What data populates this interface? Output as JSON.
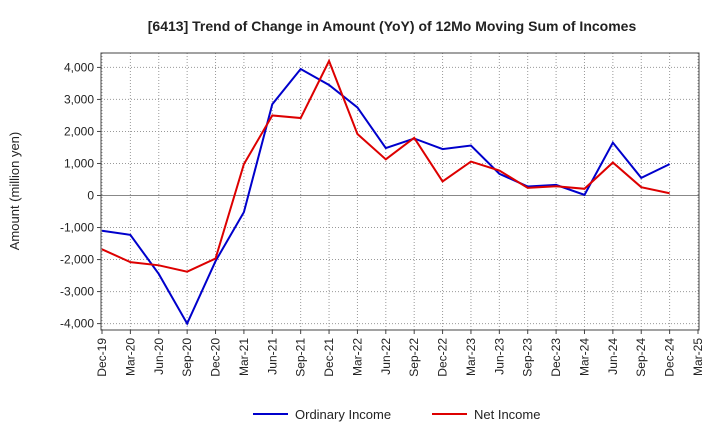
{
  "chart_data": {
    "type": "line",
    "title": "[6413]  Trend of Change in Amount (YoY) of 12Mo Moving Sum of Incomes",
    "xlabel": "",
    "ylabel": "Amount (million yen)",
    "categories": [
      "Dec-19",
      "Mar-20",
      "Jun-20",
      "Sep-20",
      "Dec-20",
      "Mar-21",
      "Jun-21",
      "Sep-21",
      "Dec-21",
      "Mar-22",
      "Jun-22",
      "Sep-22",
      "Dec-22",
      "Mar-23",
      "Jun-23",
      "Sep-23",
      "Dec-23",
      "Mar-24",
      "Jun-24",
      "Sep-24",
      "Dec-24",
      "Mar-25"
    ],
    "ylim": [
      -4200,
      4450
    ],
    "yticks": [
      -4000,
      -3000,
      -2000,
      -1000,
      0,
      1000,
      2000,
      3000,
      4000
    ],
    "ytick_labels": [
      "-4,000",
      "-3,000",
      "-2,000",
      "-1,000",
      "0",
      "1,000",
      "2,000",
      "3,000",
      "4,000"
    ],
    "grid": true,
    "legend_position": "bottom-center",
    "series": [
      {
        "name": "Ordinary Income",
        "color": "#0000cc",
        "values": [
          -1100,
          -1230,
          -2450,
          -4000,
          -2050,
          -520,
          2850,
          3950,
          3450,
          2750,
          1480,
          1780,
          1450,
          1560,
          680,
          280,
          330,
          20,
          1650,
          550,
          980,
          null
        ]
      },
      {
        "name": "Net Income",
        "color": "#dd0000",
        "values": [
          -1680,
          -2080,
          -2180,
          -2380,
          -1970,
          980,
          2500,
          2420,
          4200,
          1920,
          1130,
          1800,
          440,
          1060,
          780,
          240,
          290,
          210,
          1030,
          260,
          70,
          null
        ]
      }
    ]
  }
}
